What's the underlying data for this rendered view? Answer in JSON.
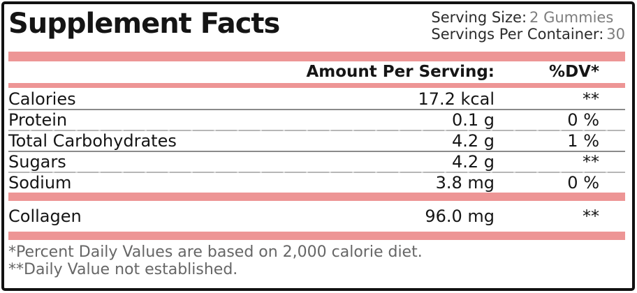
{
  "header": {
    "title": "Supplement Facts",
    "serving_size_label": "Serving Size:",
    "serving_size_value": "2 Gummies",
    "servings_label": "Servings Per Container:",
    "servings_value": "30"
  },
  "table": {
    "amount_header": "Amount Per Serving:",
    "dv_header": "%DV*",
    "rows": [
      {
        "name": "Calories",
        "amount": "17.2 kcal",
        "dv": "**"
      },
      {
        "name": "Protein",
        "amount": "0.1 g",
        "dv": "0 %"
      },
      {
        "name": "Total Carbohydrates",
        "amount": "4.2 g",
        "dv": "1 %"
      },
      {
        "name": "Sugars",
        "amount": "4.2 g",
        "dv": "**"
      },
      {
        "name": "Sodium",
        "amount": "3.8 mg",
        "dv": "0 %"
      }
    ],
    "supplement_rows": [
      {
        "name": "Collagen",
        "amount": "96.0 mg",
        "dv": "**"
      }
    ]
  },
  "footnotes": {
    "line1": "*Percent Daily Values are based on 2,000 calorie diet.",
    "line2": "**Daily Value not established."
  },
  "colors": {
    "accent_pink": "#ED9595",
    "divider_dark": "#8a8a8a",
    "divider_light": "#b6b6b6",
    "muted_text": "#666666",
    "value_gray": "#7d7d7d",
    "border_black": "#111111"
  }
}
